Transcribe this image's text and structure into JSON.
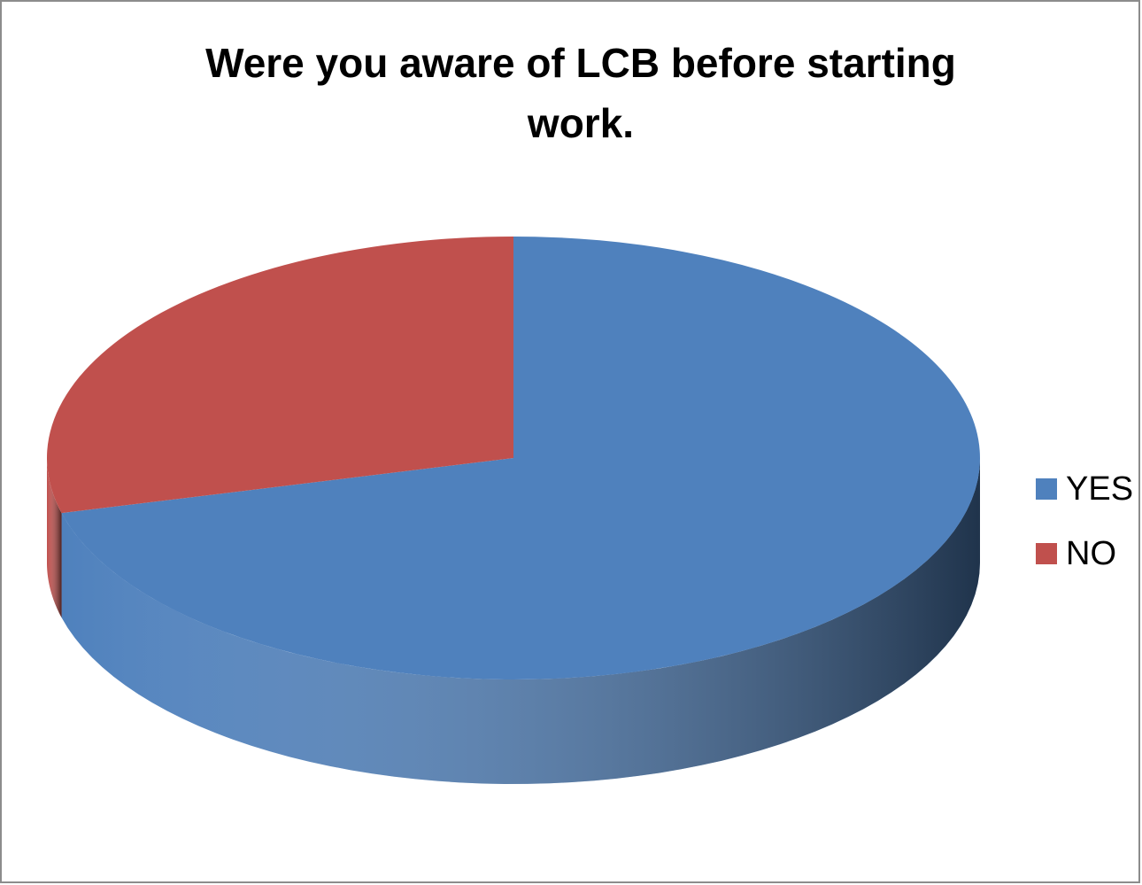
{
  "chart_data": {
    "type": "pie",
    "title": "Were you aware of LCB before starting work.",
    "categories": [
      "YES",
      "NO"
    ],
    "values": [
      71,
      29
    ],
    "colors": [
      "#4f81bd",
      "#c0504d"
    ],
    "legend": "right",
    "three_d": true
  }
}
